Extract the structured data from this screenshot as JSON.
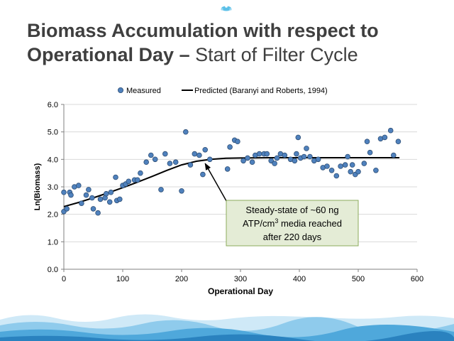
{
  "slide": {
    "title_line1": "Biomass Accumulation with respect to",
    "title_line2_bold": "Operational Day –",
    "title_line2_light": "Start of Filter Cycle",
    "logo_icon": "water-drop-logo-icon",
    "footer_icon": "water-wave-footer-icon"
  },
  "chart_data": {
    "type": "scatter",
    "title": "",
    "xlabel": "Operational Day",
    "ylabel": "Ln(Biomass)",
    "xlim": [
      0,
      600
    ],
    "ylim": [
      0,
      6
    ],
    "xticks": [
      "0",
      "100",
      "200",
      "300",
      "400",
      "500",
      "600"
    ],
    "yticks": [
      "0.0",
      "1.0",
      "2.0",
      "3.0",
      "4.0",
      "5.0",
      "6.0"
    ],
    "grid": "horizontal",
    "legend_position": "top",
    "colors": {
      "measured": "#4f81bd",
      "predicted": "#000000"
    },
    "series": [
      {
        "name": "Measured",
        "kind": "scatter",
        "points": [
          [
            0,
            2.8
          ],
          [
            0,
            2.1
          ],
          [
            5,
            2.2
          ],
          [
            10,
            2.8
          ],
          [
            12,
            2.7
          ],
          [
            18,
            3.0
          ],
          [
            25,
            3.05
          ],
          [
            30,
            2.4
          ],
          [
            38,
            2.7
          ],
          [
            42,
            2.9
          ],
          [
            48,
            2.6
          ],
          [
            50,
            2.2
          ],
          [
            58,
            2.05
          ],
          [
            62,
            2.55
          ],
          [
            70,
            2.6
          ],
          [
            72,
            2.75
          ],
          [
            78,
            2.45
          ],
          [
            80,
            2.8
          ],
          [
            88,
            3.35
          ],
          [
            90,
            2.5
          ],
          [
            95,
            2.55
          ],
          [
            100,
            3.05
          ],
          [
            105,
            3.1
          ],
          [
            110,
            3.2
          ],
          [
            120,
            3.25
          ],
          [
            125,
            3.25
          ],
          [
            130,
            3.5
          ],
          [
            140,
            3.9
          ],
          [
            148,
            4.15
          ],
          [
            155,
            4.0
          ],
          [
            165,
            2.9
          ],
          [
            172,
            4.2
          ],
          [
            180,
            3.85
          ],
          [
            190,
            3.9
          ],
          [
            200,
            2.85
          ],
          [
            207,
            5.0
          ],
          [
            215,
            3.8
          ],
          [
            222,
            4.2
          ],
          [
            230,
            4.15
          ],
          [
            236,
            3.45
          ],
          [
            240,
            4.35
          ],
          [
            248,
            4.0
          ],
          [
            278,
            3.65
          ],
          [
            282,
            4.45
          ],
          [
            290,
            4.7
          ],
          [
            295,
            4.65
          ],
          [
            305,
            3.95
          ],
          [
            312,
            4.05
          ],
          [
            320,
            3.9
          ],
          [
            325,
            4.15
          ],
          [
            332,
            4.2
          ],
          [
            340,
            4.2
          ],
          [
            345,
            4.2
          ],
          [
            352,
            3.95
          ],
          [
            358,
            3.85
          ],
          [
            362,
            4.05
          ],
          [
            368,
            4.2
          ],
          [
            375,
            4.15
          ],
          [
            385,
            4.0
          ],
          [
            392,
            3.95
          ],
          [
            395,
            4.2
          ],
          [
            398,
            4.8
          ],
          [
            402,
            4.05
          ],
          [
            408,
            4.1
          ],
          [
            412,
            4.4
          ],
          [
            418,
            4.1
          ],
          [
            425,
            3.95
          ],
          [
            432,
            4.0
          ],
          [
            440,
            3.7
          ],
          [
            447,
            3.75
          ],
          [
            455,
            3.6
          ],
          [
            463,
            3.4
          ],
          [
            470,
            3.75
          ],
          [
            478,
            3.8
          ],
          [
            482,
            4.1
          ],
          [
            487,
            3.55
          ],
          [
            490,
            3.8
          ],
          [
            495,
            3.45
          ],
          [
            500,
            3.55
          ],
          [
            510,
            3.85
          ],
          [
            515,
            4.65
          ],
          [
            520,
            4.25
          ],
          [
            530,
            3.6
          ],
          [
            538,
            4.75
          ],
          [
            545,
            4.8
          ],
          [
            555,
            5.05
          ],
          [
            560,
            4.15
          ],
          [
            568,
            4.65
          ]
        ]
      },
      {
        "name": "Predicted (Baranyi and Roberts, 1994)",
        "kind": "line",
        "points": [
          [
            0,
            2.28
          ],
          [
            25,
            2.43
          ],
          [
            50,
            2.6
          ],
          [
            75,
            2.78
          ],
          [
            100,
            2.97
          ],
          [
            125,
            3.17
          ],
          [
            150,
            3.38
          ],
          [
            175,
            3.6
          ],
          [
            200,
            3.8
          ],
          [
            225,
            3.93
          ],
          [
            250,
            4.0
          ],
          [
            275,
            4.04
          ],
          [
            300,
            4.05
          ],
          [
            350,
            4.06
          ],
          [
            400,
            4.06
          ],
          [
            450,
            4.06
          ],
          [
            500,
            4.06
          ],
          [
            570,
            4.06
          ]
        ]
      }
    ],
    "annotation": {
      "line1": "Steady-state of ~60 ng",
      "line2_prefix": "ATP/cm",
      "line2_sup": "3",
      "line2_suffix": " media reached",
      "line3": "after 220 days",
      "box_fill": "#e4ecd6",
      "box_border": "#8cab5c",
      "arrow_target": [
        240,
        3.85
      ]
    }
  }
}
